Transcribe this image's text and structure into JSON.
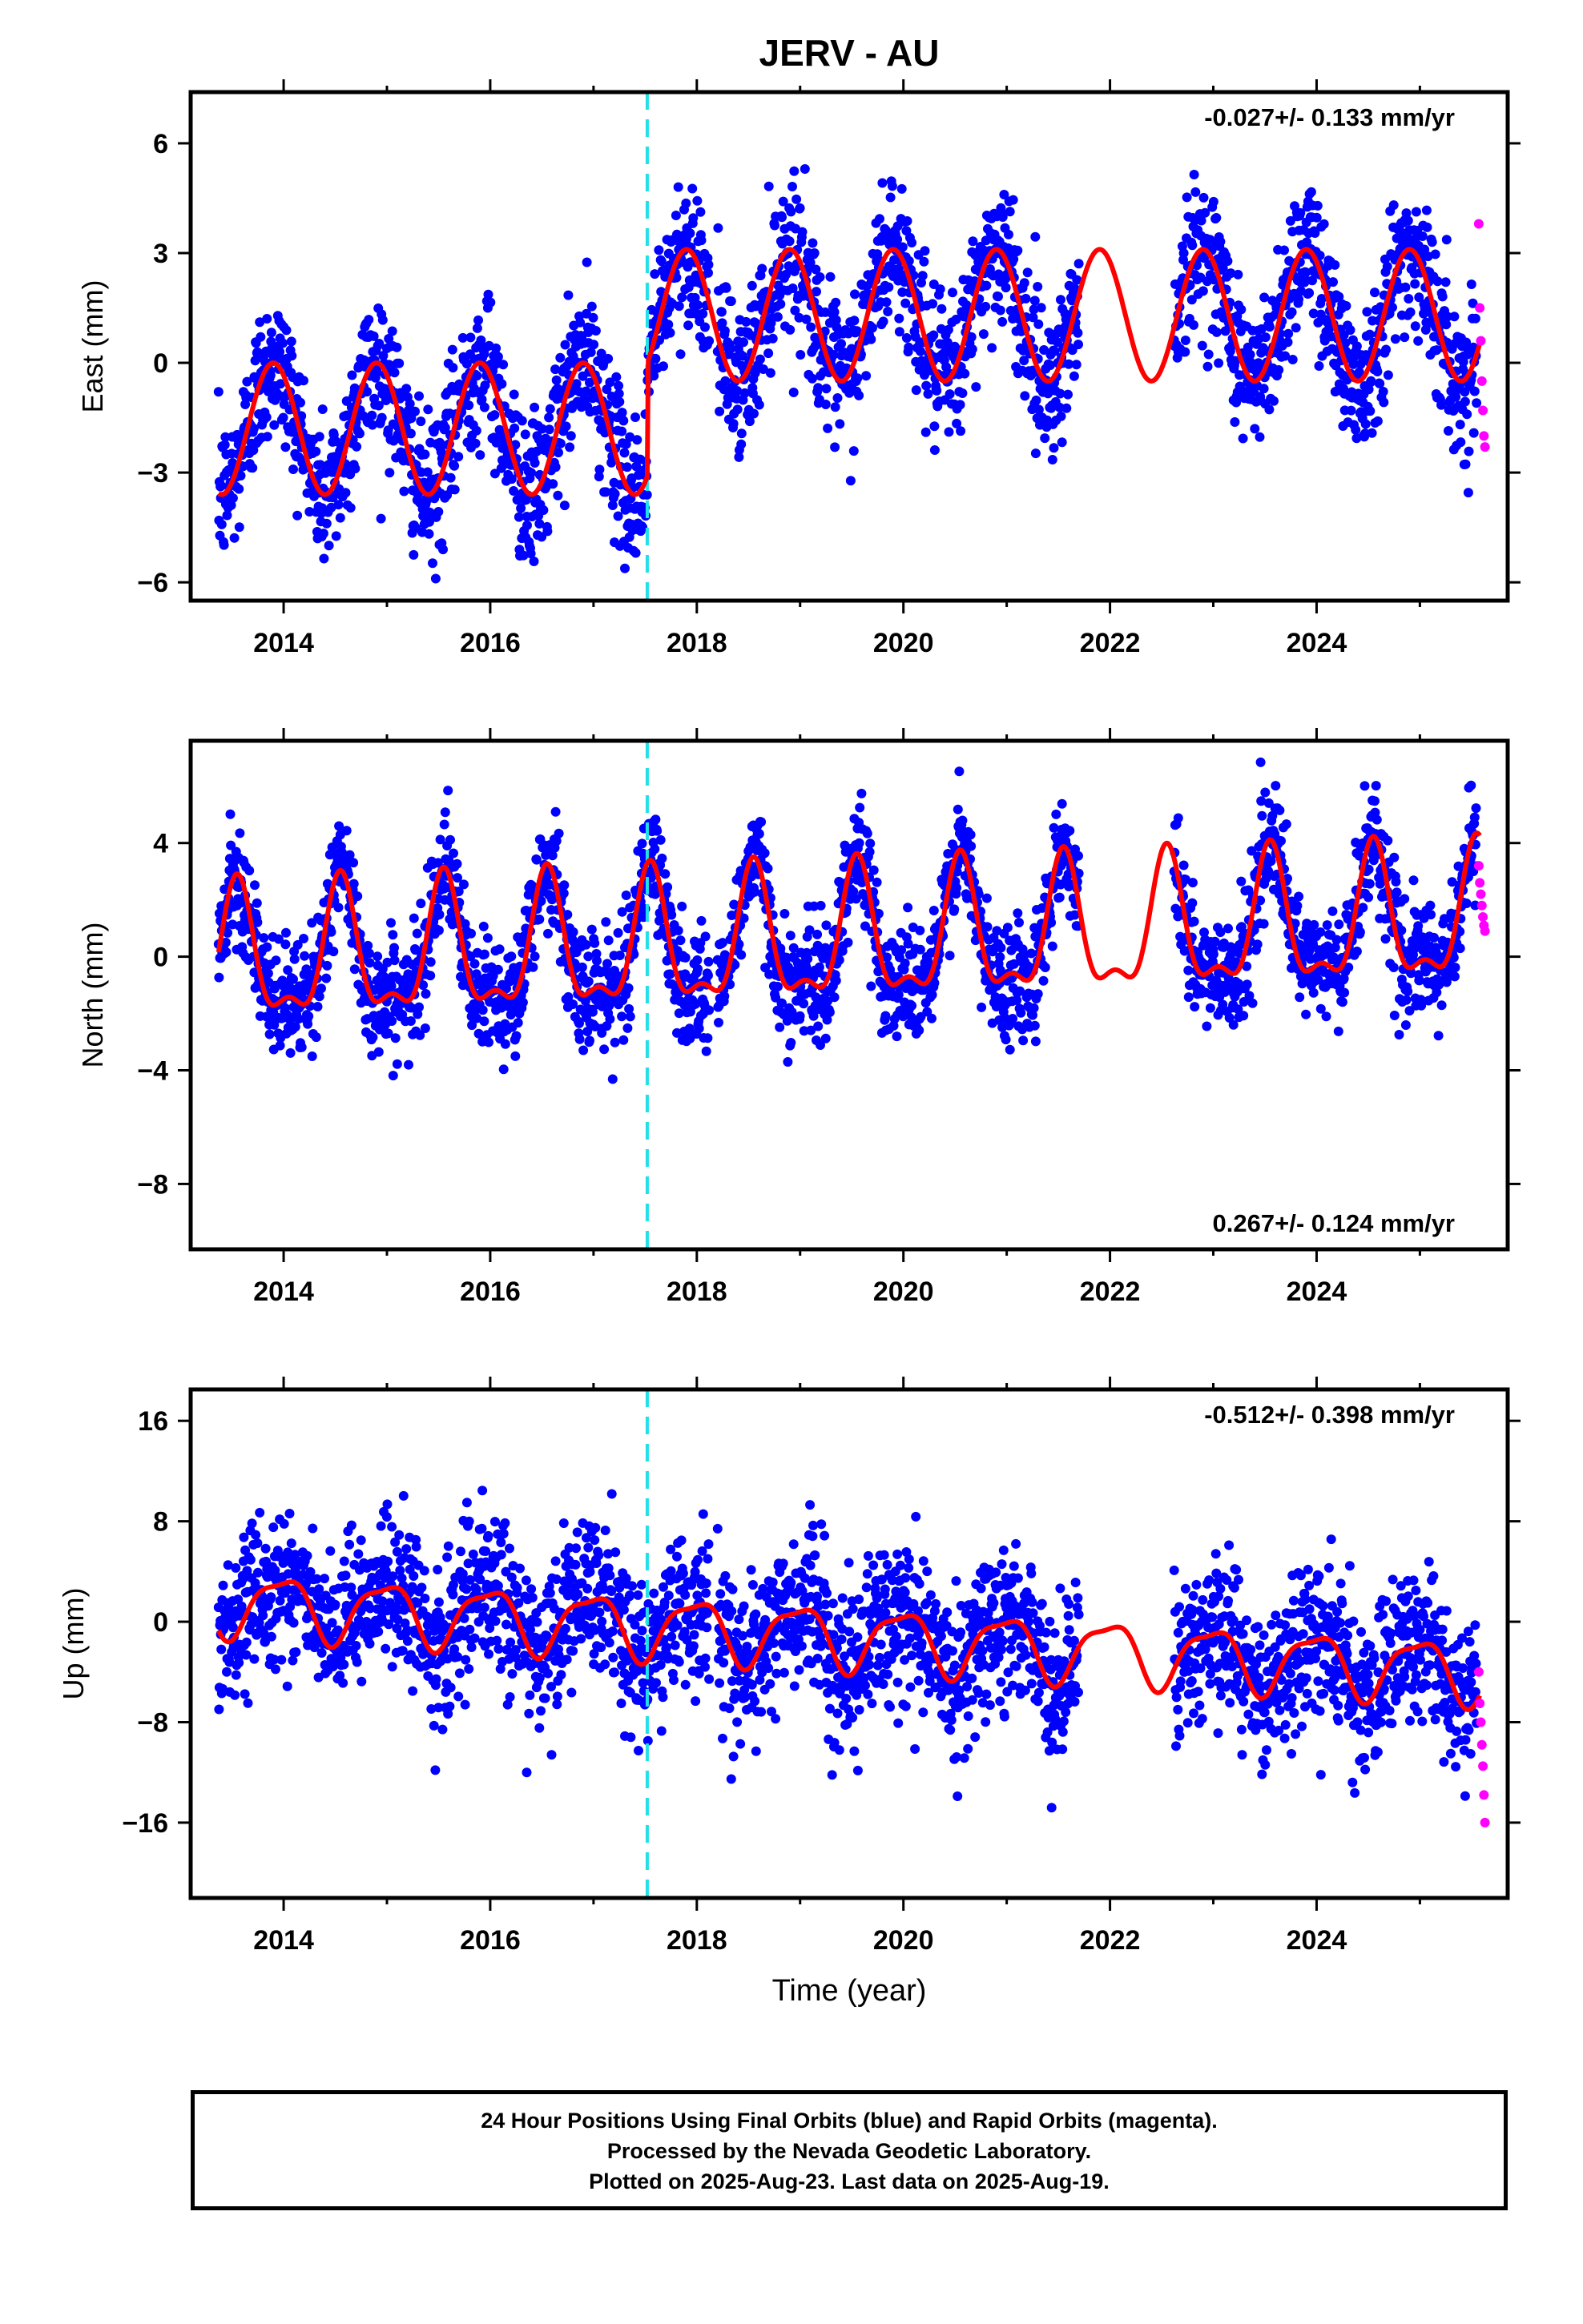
{
  "chart_data": [
    {
      "type": "scatter",
      "title": "JERV - AU",
      "ylabel": "East (mm)",
      "xlabel": "",
      "rate_text": "-0.027+/- 0.133 mm/yr",
      "rate_position": "top-right",
      "xlim": [
        2013.1,
        2025.85
      ],
      "ylim": [
        -6.5,
        7.4
      ],
      "xticks": [
        2014,
        2016,
        2018,
        2020,
        2022,
        2024
      ],
      "xtick_labels": [
        "2014",
        "2016",
        "2018",
        "2020",
        "2022",
        "2024"
      ],
      "yticks": [
        -6,
        -3,
        0,
        3,
        6
      ],
      "ytick_labels": [
        "−6",
        "−3",
        "0",
        "3",
        "6"
      ],
      "grid": false,
      "break_line_x": 2017.52,
      "model": {
        "offset_before": -1.8,
        "offset_after": 1.3,
        "amplitude": 1.8,
        "peak": 0.9
      },
      "noise_sd": 1.0,
      "series": [
        {
          "name": "Final Orbits",
          "color": "#0000ff",
          "x_range": [
            2013.37,
            2025.55
          ]
        },
        {
          "name": "Rapid Orbits",
          "color": "#ff00ff",
          "x": [
            2025.57,
            2025.58,
            2025.59,
            2025.6,
            2025.61,
            2025.62,
            2025.63
          ],
          "y": [
            3.8,
            1.5,
            0.6,
            -0.5,
            -1.3,
            -2.0,
            -2.3
          ]
        },
        {
          "name": "Model",
          "color": "#ff0000"
        }
      ]
    },
    {
      "type": "scatter",
      "ylabel": "North (mm)",
      "xlabel": "",
      "rate_text": "0.267+/- 0.124 mm/yr",
      "rate_position": "bottom-right",
      "xlim": [
        2013.1,
        2025.85
      ],
      "ylim": [
        -10.3,
        7.6
      ],
      "xticks": [
        2014,
        2016,
        2018,
        2020,
        2022,
        2024
      ],
      "xtick_labels": [
        "2014",
        "2016",
        "2018",
        "2020",
        "2022",
        "2024"
      ],
      "yticks": [
        -8,
        -4,
        0,
        4
      ],
      "ytick_labels": [
        "−8",
        "−4",
        "0",
        "4"
      ],
      "grid": false,
      "break_line_x": 2017.52,
      "model": {
        "base": -0.2,
        "trend": 0.12,
        "amplitude": 2.2,
        "peak": 0.55
      },
      "noise_sd": 1.0,
      "series": [
        {
          "name": "Final Orbits",
          "color": "#0000ff",
          "x_range": [
            2013.37,
            2025.55
          ]
        },
        {
          "name": "Rapid Orbits",
          "color": "#ff00ff",
          "x": [
            2025.57,
            2025.58,
            2025.59,
            2025.6,
            2025.61,
            2025.62,
            2025.63
          ],
          "y": [
            3.2,
            2.6,
            2.2,
            1.8,
            1.4,
            1.1,
            0.9
          ]
        },
        {
          "name": "Model",
          "color": "#ff0000"
        }
      ]
    },
    {
      "type": "scatter",
      "ylabel": "Up (mm)",
      "xlabel": "Time (year)",
      "rate_text": "-0.512+/- 0.398 mm/yr",
      "rate_position": "top-right",
      "xlim": [
        2013.1,
        2025.85
      ],
      "ylim": [
        -22,
        18.5
      ],
      "xticks": [
        2014,
        2016,
        2018,
        2020,
        2022,
        2024
      ],
      "xtick_labels": [
        "2014",
        "2016",
        "2018",
        "2020",
        "2022",
        "2024"
      ],
      "yticks": [
        -16,
        -8,
        0,
        8,
        16
      ],
      "ytick_labels": [
        "−16",
        "−8",
        "0",
        "8",
        "16"
      ],
      "grid": false,
      "break_line_x": 2017.52,
      "model": {
        "base": 1.5,
        "trend": -0.45,
        "amplitude": 2.4,
        "peak": 0.98
      },
      "noise_sd": 3.0,
      "series": [
        {
          "name": "Final Orbits",
          "color": "#0000ff",
          "x_range": [
            2013.37,
            2025.55
          ]
        },
        {
          "name": "Rapid Orbits",
          "color": "#ff00ff",
          "x": [
            2025.57,
            2025.58,
            2025.59,
            2025.6,
            2025.61,
            2025.62,
            2025.63
          ],
          "y": [
            -4.0,
            -6.5,
            -8.0,
            -9.8,
            -11.5,
            -13.8,
            -16.0
          ]
        },
        {
          "name": "Model",
          "color": "#ff0000"
        }
      ]
    }
  ],
  "footer": {
    "line1": "24 Hour Positions Using Final Orbits (blue) and Rapid Orbits (magenta).",
    "line2": "Processed by the Nevada Geodetic Laboratory.",
    "line3": "Plotted on 2025-Aug-23. Last data on 2025-Aug-19."
  }
}
